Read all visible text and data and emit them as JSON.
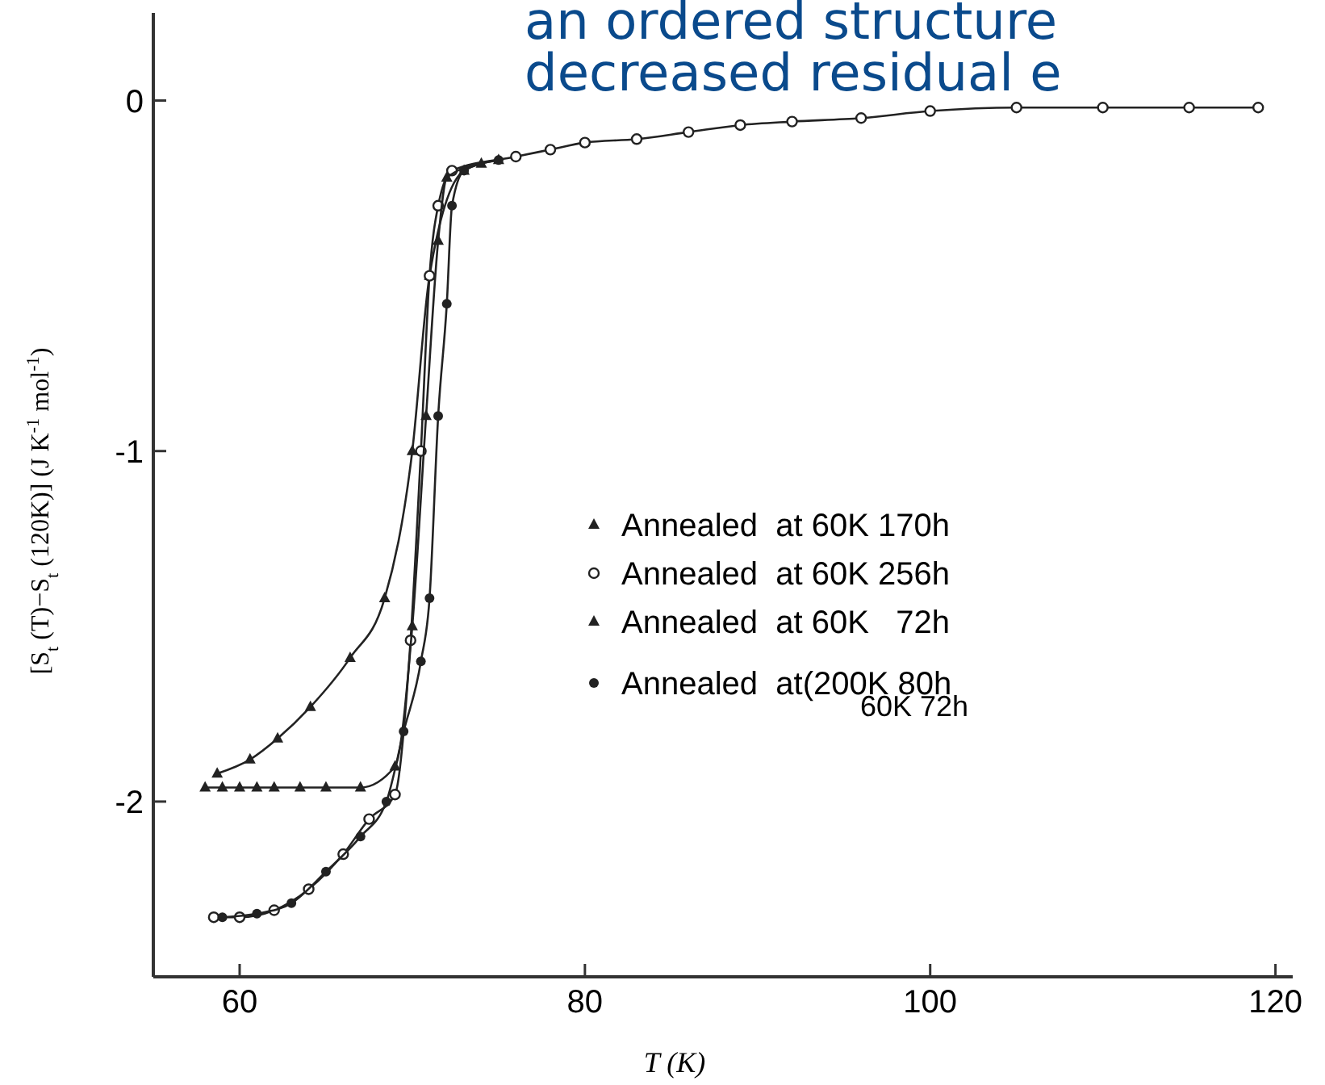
{
  "chart_data": {
    "type": "line",
    "xlabel": "T (K)",
    "ylabel": "[S$_{t}$ (T)−S$_{t}$ (120K)] (J K$^{-1}$ mol$^{-1}$)",
    "annotations": [
      "an ordered structure",
      "decreased residual e"
    ],
    "xlim": [
      55,
      121
    ],
    "xticks": [
      60,
      80,
      100,
      120
    ],
    "ylim": [
      -2.5,
      0.25
    ],
    "yticks": [
      0,
      -1,
      -2
    ],
    "grid": false,
    "legend": "right",
    "series": [
      {
        "name": "Annealed  at 60K 170h",
        "color": "#222222",
        "marker": "triangle",
        "x": [
          58.7,
          60.6,
          62.2,
          64.1,
          66.4,
          68.4,
          70,
          71,
          73,
          75
        ],
        "values": [
          -1.92,
          -1.88,
          -1.82,
          -1.73,
          -1.59,
          -1.42,
          -1.0,
          -0.5,
          -0.2,
          -0.17
        ]
      },
      {
        "name": "Annealed  at 60K 256h",
        "color": "#222222",
        "marker": "circle",
        "x": [
          58.5,
          60,
          62,
          64,
          66,
          67.5,
          69,
          69.9,
          70.5,
          71,
          71.5,
          72.3,
          76,
          78,
          80,
          83,
          86,
          89,
          92,
          96,
          100,
          105,
          110,
          115,
          119
        ],
        "values": [
          -2.33,
          -2.33,
          -2.31,
          -2.25,
          -2.15,
          -2.05,
          -1.98,
          -1.54,
          -1.0,
          -0.5,
          -0.3,
          -0.2,
          -0.16,
          -0.14,
          -0.12,
          -0.11,
          -0.09,
          -0.07,
          -0.06,
          -0.05,
          -0.03,
          -0.02,
          -0.02,
          -0.02,
          -0.02
        ]
      },
      {
        "name": "Annealed  at 60K   72h",
        "color": "#222222",
        "marker": "triangle",
        "x": [
          58,
          59,
          60,
          61,
          62,
          63.5,
          65,
          67,
          69,
          70,
          70.8,
          71.5,
          72,
          74
        ],
        "values": [
          -1.96,
          -1.96,
          -1.96,
          -1.96,
          -1.96,
          -1.96,
          -1.96,
          -1.96,
          -1.9,
          -1.5,
          -0.9,
          -0.4,
          -0.22,
          -0.18
        ]
      },
      {
        "name": "Annealed  at(200K 80h\n60K 72h",
        "color": "#222222",
        "marker": "circle-filled",
        "x": [
          59,
          61,
          63,
          65,
          67,
          68.5,
          69.5,
          70.5,
          71,
          71.5,
          72,
          72.3,
          73,
          75
        ],
        "values": [
          -2.33,
          -2.32,
          -2.29,
          -2.2,
          -2.1,
          -2.0,
          -1.8,
          -1.6,
          -1.42,
          -0.9,
          -0.58,
          -0.3,
          -0.2,
          -0.17
        ]
      }
    ]
  }
}
